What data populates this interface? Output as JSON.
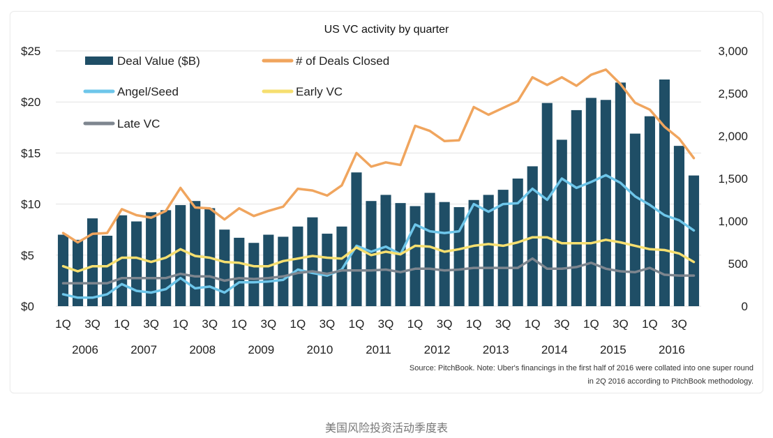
{
  "chart_data": {
    "type": "bar",
    "title": "US VC activity by quarter",
    "x_quarter_labels": [
      "1Q",
      "3Q"
    ],
    "years": [
      "2006",
      "2007",
      "2008",
      "2009",
      "2010",
      "2011",
      "2012",
      "2013",
      "2014",
      "2015",
      "2016"
    ],
    "quarters_count": 44,
    "left_axis": {
      "ticks": [
        "$0",
        "$5",
        "$10",
        "$15",
        "$20",
        "$25"
      ],
      "ylim": [
        0,
        25
      ],
      "unit": "$B"
    },
    "right_axis": {
      "ticks": [
        "0",
        "500",
        "1,000",
        "1,500",
        "2,000",
        "2,500",
        "3,000"
      ],
      "ylim": [
        0,
        3000
      ]
    },
    "series": [
      {
        "name": "Deal Value ($B)",
        "kind": "bar",
        "axis": "left",
        "color": "#1f4e66",
        "values": [
          7.0,
          6.5,
          8.6,
          6.9,
          8.9,
          8.3,
          9.2,
          9.4,
          9.9,
          10.3,
          9.6,
          7.5,
          6.7,
          6.2,
          7.0,
          6.8,
          7.8,
          8.7,
          7.1,
          7.8,
          13.1,
          10.3,
          10.9,
          10.1,
          9.8,
          11.1,
          10.2,
          9.7,
          10.4,
          10.9,
          11.4,
          12.5,
          13.7,
          19.9,
          16.3,
          19.2,
          20.4,
          20.2,
          21.9,
          16.9,
          18.6,
          22.2,
          15.7,
          12.8
        ]
      },
      {
        "name": "# of Deals Closed",
        "kind": "line",
        "axis": "right",
        "color": "#f0a55e",
        "values": [
          860,
          750,
          850,
          860,
          1140,
          1070,
          1040,
          1120,
          1390,
          1160,
          1150,
          1020,
          1150,
          1060,
          1120,
          1170,
          1380,
          1360,
          1300,
          1420,
          1800,
          1640,
          1690,
          1660,
          2120,
          2060,
          1940,
          1950,
          2340,
          2250,
          2330,
          2410,
          2690,
          2600,
          2690,
          2590,
          2720,
          2780,
          2610,
          2390,
          2310,
          2110,
          1970,
          1740
        ]
      },
      {
        "name": "Angel/Seed",
        "kind": "line",
        "axis": "right",
        "color": "#6ec6ea",
        "values": [
          140,
          100,
          100,
          140,
          260,
          180,
          160,
          200,
          330,
          210,
          230,
          160,
          280,
          280,
          290,
          310,
          430,
          390,
          360,
          430,
          710,
          640,
          700,
          610,
          960,
          880,
          860,
          880,
          1200,
          1110,
          1200,
          1210,
          1380,
          1250,
          1500,
          1390,
          1460,
          1540,
          1450,
          1290,
          1190,
          1070,
          1010,
          890
        ]
      },
      {
        "name": "Early VC",
        "kind": "line",
        "axis": "right",
        "color": "#f6df70",
        "values": [
          470,
          410,
          470,
          470,
          570,
          570,
          520,
          570,
          670,
          590,
          570,
          520,
          510,
          470,
          470,
          530,
          560,
          590,
          570,
          560,
          690,
          600,
          640,
          610,
          710,
          700,
          640,
          670,
          710,
          730,
          710,
          750,
          810,
          810,
          740,
          740,
          740,
          780,
          750,
          710,
          670,
          660,
          620,
          520
        ]
      },
      {
        "name": "Late VC",
        "kind": "line",
        "axis": "right",
        "color": "#7e868f",
        "values": [
          270,
          270,
          270,
          270,
          330,
          330,
          330,
          330,
          380,
          350,
          350,
          300,
          330,
          320,
          330,
          350,
          390,
          410,
          380,
          420,
          420,
          420,
          430,
          400,
          440,
          440,
          420,
          430,
          450,
          450,
          450,
          450,
          560,
          440,
          440,
          460,
          510,
          440,
          410,
          400,
          450,
          370,
          360,
          360
        ]
      }
    ],
    "legend": [
      "Deal Value ($B)",
      "# of Deals Closed",
      "Angel/Seed",
      "Early VC",
      "Late VC"
    ],
    "source_note_line1": "Source: PitchBook. Note: Uber's financings in the first half of 2016 were collated into one super round",
    "source_note_line2": "in 2Q 2016 according to PitchBook methodology."
  },
  "caption": "美国风险投资活动季度表"
}
